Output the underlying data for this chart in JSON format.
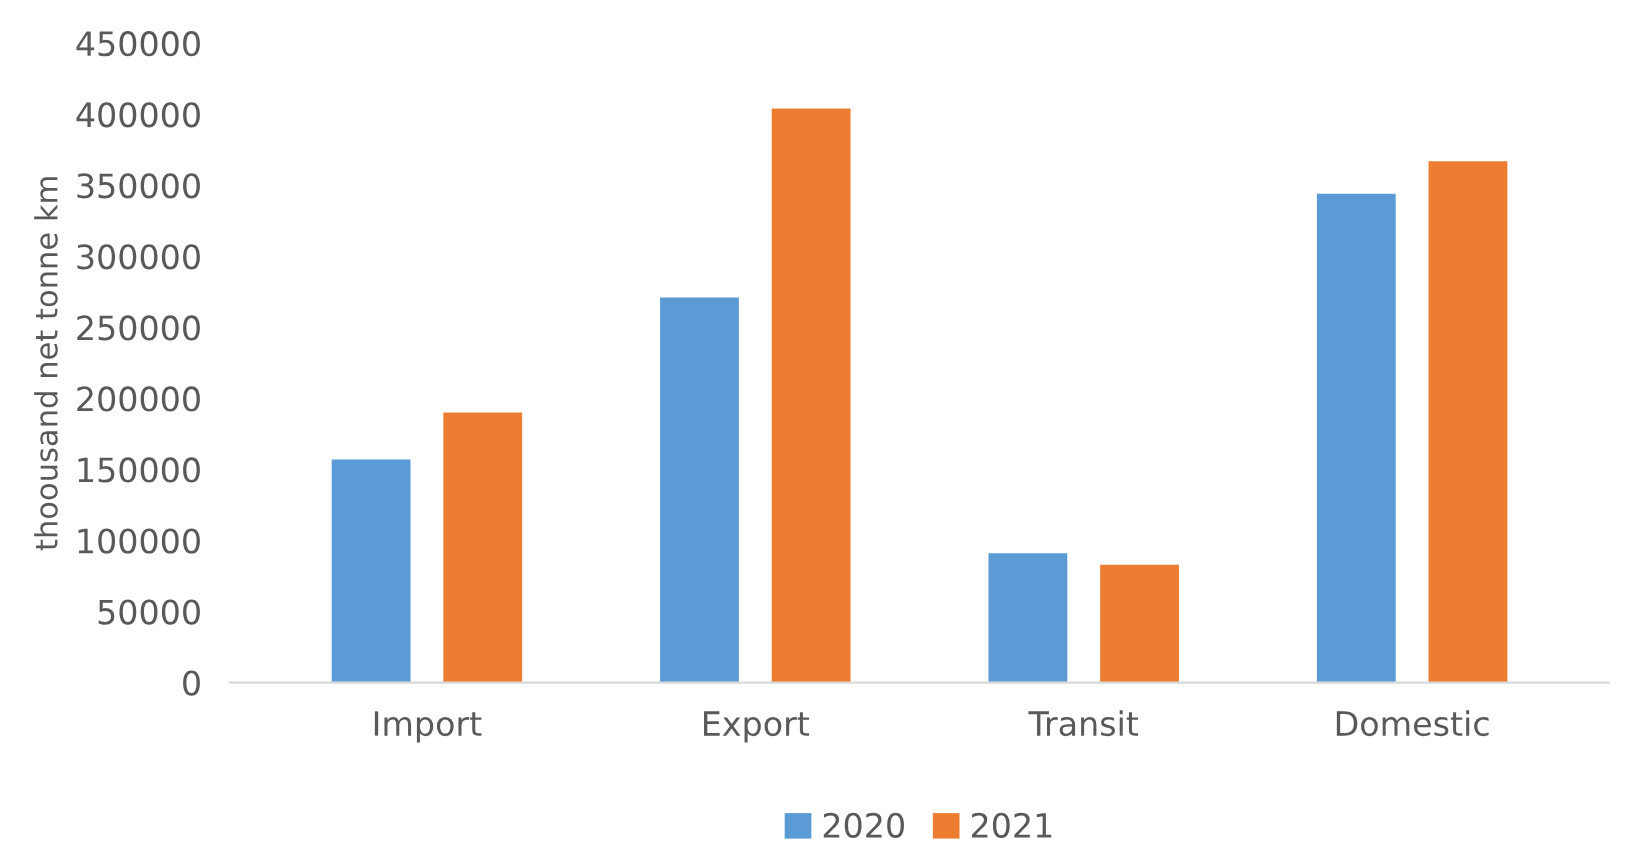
{
  "chart_data": {
    "type": "bar",
    "ylabel": "thoousand net tonne km",
    "categories": [
      "Import",
      "Export",
      "Transit",
      "Domestic"
    ],
    "series": [
      {
        "name": "2020",
        "color": "#5b9bd5",
        "values": [
          157000,
          271000,
          91000,
          344000
        ]
      },
      {
        "name": "2021",
        "color": "#ed7d31",
        "values": [
          190000,
          404000,
          83000,
          367000
        ]
      }
    ],
    "ylim": [
      0,
      450000
    ],
    "yticks": [
      0,
      50000,
      100000,
      150000,
      200000,
      250000,
      300000,
      350000,
      400000,
      450000
    ],
    "grid": false,
    "legend": "bottom"
  }
}
